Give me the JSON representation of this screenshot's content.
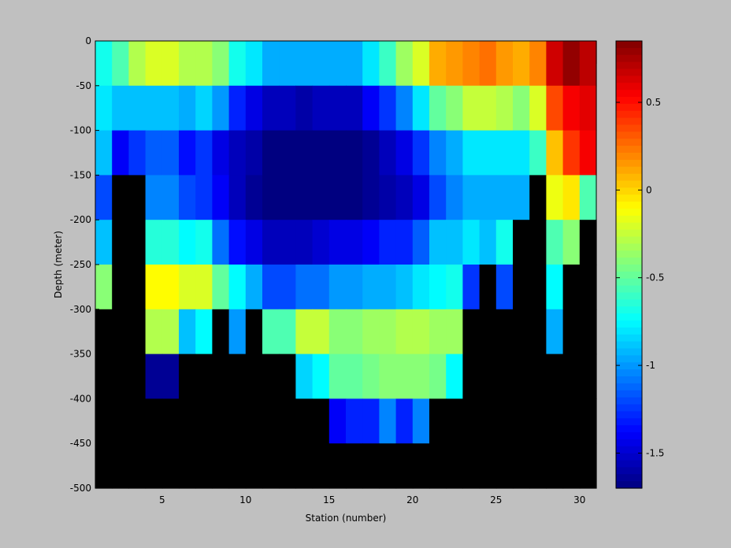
{
  "chart_data": {
    "type": "heatmap",
    "title": "",
    "xlabel": "Station (number)",
    "ylabel": "Depth (meter)",
    "xlim": [
      1,
      31
    ],
    "ylim": [
      -500,
      0
    ],
    "x_ticks": [
      5,
      10,
      15,
      20,
      25,
      30
    ],
    "y_ticks": [
      0,
      -50,
      -100,
      -150,
      -200,
      -250,
      -300,
      -350,
      -400,
      -450,
      -500
    ],
    "x_stations": [
      1,
      2,
      3,
      4,
      5,
      6,
      7,
      8,
      9,
      10,
      11,
      12,
      13,
      14,
      15,
      16,
      17,
      18,
      19,
      20,
      21,
      22,
      23,
      24,
      25,
      26,
      27,
      28,
      29,
      30
    ],
    "depth_bins": [
      0,
      -25,
      -75,
      -125,
      -175,
      -225,
      -275,
      -325,
      -375,
      -425,
      -475
    ],
    "no_data_color": "#000000",
    "colorbar": {
      "colormap": "jet",
      "vmin": -1.7,
      "vmax": 0.85,
      "ticks": [
        0.5,
        0,
        -0.5,
        -1,
        -1.5
      ]
    },
    "values": [
      [
        -0.85,
        -0.7,
        -0.45,
        -0.25,
        -0.25,
        -0.3,
        -0.45,
        -0.75,
        -0.8,
        -0.85,
        -0.95,
        -0.95,
        -0.95,
        -0.95,
        -0.95,
        -0.95,
        -0.8,
        -0.65,
        -0.35,
        0.05,
        0.15,
        0.2,
        0.25,
        0.25,
        0.15,
        0.1,
        0.3,
        0.6,
        0.75,
        0.7
      ],
      [
        -0.7,
        -0.55,
        -0.3,
        -0.2,
        -0.2,
        -0.3,
        -0.3,
        -0.4,
        -0.7,
        -0.8,
        -0.95,
        -0.95,
        -0.95,
        -0.95,
        -0.95,
        -0.95,
        -0.8,
        -0.6,
        -0.35,
        -0.2,
        0.1,
        0.15,
        0.2,
        0.25,
        0.15,
        0.1,
        0.2,
        0.65,
        0.8,
        0.7
      ],
      [
        -0.8,
        -0.9,
        -0.9,
        -0.9,
        -0.9,
        -0.95,
        -0.85,
        -1.0,
        -1.3,
        -1.45,
        -1.55,
        -1.55,
        -1.6,
        -1.55,
        -1.55,
        -1.55,
        -1.4,
        -1.25,
        -1.05,
        -0.8,
        -0.5,
        -0.4,
        -0.25,
        -0.25,
        -0.3,
        -0.4,
        -0.2,
        0.35,
        0.55,
        0.6
      ],
      [
        -0.9,
        -1.4,
        -1.25,
        -1.15,
        -1.15,
        -1.35,
        -1.25,
        -1.45,
        -1.55,
        -1.6,
        -1.7,
        -1.7,
        -1.7,
        -1.7,
        -1.7,
        -1.7,
        -1.65,
        -1.55,
        -1.45,
        -1.25,
        -1.05,
        -0.95,
        -0.8,
        -0.8,
        -0.8,
        -0.8,
        -0.6,
        0.05,
        0.4,
        0.55
      ],
      [
        -1.2,
        null,
        null,
        -1.05,
        -1.05,
        -1.2,
        -1.25,
        -1.4,
        -1.55,
        -1.65,
        -1.7,
        -1.7,
        -1.7,
        -1.7,
        -1.7,
        -1.7,
        -1.65,
        -1.6,
        -1.55,
        -1.45,
        -1.2,
        -1.05,
        -0.95,
        -0.95,
        -0.95,
        -0.95,
        null,
        -0.15,
        -0.05,
        -0.55
      ],
      [
        -0.9,
        null,
        null,
        -0.65,
        -0.65,
        -0.75,
        -0.7,
        -1.1,
        -1.35,
        -1.45,
        -1.55,
        -1.55,
        -1.55,
        -1.5,
        -1.45,
        -1.45,
        -1.4,
        -1.3,
        -1.3,
        -1.15,
        -0.9,
        -0.9,
        -0.8,
        -0.9,
        -0.7,
        null,
        null,
        -0.55,
        -0.4,
        null
      ],
      [
        -0.4,
        null,
        null,
        -0.1,
        -0.1,
        -0.2,
        -0.2,
        -0.5,
        -0.75,
        -0.95,
        -1.2,
        -1.2,
        -1.1,
        -1.1,
        -1.0,
        -1.0,
        -0.95,
        -0.95,
        -0.9,
        -0.8,
        -0.75,
        -0.7,
        -1.25,
        null,
        -1.2,
        null,
        null,
        -0.75,
        null,
        null
      ],
      [
        null,
        null,
        null,
        -0.3,
        -0.3,
        -0.9,
        -0.75,
        null,
        -1.0,
        null,
        -0.55,
        -0.55,
        -0.25,
        -0.25,
        -0.4,
        -0.4,
        -0.35,
        -0.35,
        -0.3,
        -0.3,
        -0.35,
        -0.35,
        null,
        null,
        null,
        null,
        null,
        -0.95,
        null,
        null
      ],
      [
        null,
        null,
        null,
        -1.65,
        -1.65,
        null,
        null,
        null,
        null,
        null,
        null,
        null,
        -0.85,
        -0.75,
        -0.5,
        -0.5,
        -0.45,
        -0.4,
        -0.4,
        -0.4,
        -0.45,
        -0.75,
        null,
        null,
        null,
        null,
        null,
        null,
        null,
        null
      ],
      [
        null,
        null,
        null,
        null,
        null,
        null,
        null,
        null,
        null,
        null,
        null,
        null,
        null,
        null,
        -1.4,
        -1.3,
        -1.3,
        -1.05,
        -1.3,
        -1.05,
        null,
        null,
        null,
        null,
        null,
        null,
        null,
        null,
        null,
        null
      ],
      [
        null,
        null,
        null,
        null,
        null,
        null,
        null,
        null,
        null,
        null,
        null,
        null,
        null,
        null,
        null,
        null,
        null,
        null,
        null,
        null,
        null,
        null,
        null,
        null,
        null,
        null,
        null,
        null,
        null,
        null
      ]
    ]
  }
}
